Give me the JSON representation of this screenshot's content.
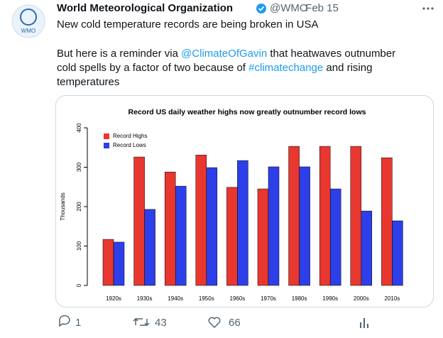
{
  "tweet": {
    "author": "World Meteorological Organization",
    "handle": "@WMO",
    "date": "· Feb 15",
    "avatar_text": "WMO",
    "headline": "New cold temperature records are being broken in USA",
    "body": [
      [
        {
          "text": "But here is a reminder via "
        },
        {
          "text": "@ClimateOfGavin",
          "link": true
        },
        {
          "text": " that heatwaves outnumber"
        }
      ],
      [
        {
          "text": "cold spells by a factor of two because of "
        },
        {
          "text": "#climatechange",
          "link": true
        },
        {
          "text": " and rising"
        }
      ],
      [
        {
          "text": "temperatures"
        }
      ]
    ],
    "replies": "1",
    "retweets": "43",
    "likes": "66"
  },
  "chart_data": {
    "type": "bar",
    "title": "Record US daily weather highs now greatly outnumber record lows",
    "y_label": "Thousands",
    "categories": [
      "1920s",
      "1930s",
      "1940s",
      "1950s",
      "1960s",
      "1970s",
      "1980s",
      "1990s",
      "2000s",
      "2010s"
    ],
    "series": [
      {
        "name": "Record Highs",
        "color": "#e8372f",
        "values": [
          117,
          326,
          288,
          331,
          249,
          245,
          353,
          353,
          353,
          324
        ]
      },
      {
        "name": "Record Lows",
        "color": "#2d3fe8",
        "values": [
          110,
          193,
          252,
          299,
          317,
          301,
          301,
          245,
          189,
          164
        ]
      }
    ],
    "ylim": [
      0,
      400
    ],
    "yticks": [
      0,
      100,
      200,
      300,
      400
    ],
    "legend": "upper left"
  }
}
